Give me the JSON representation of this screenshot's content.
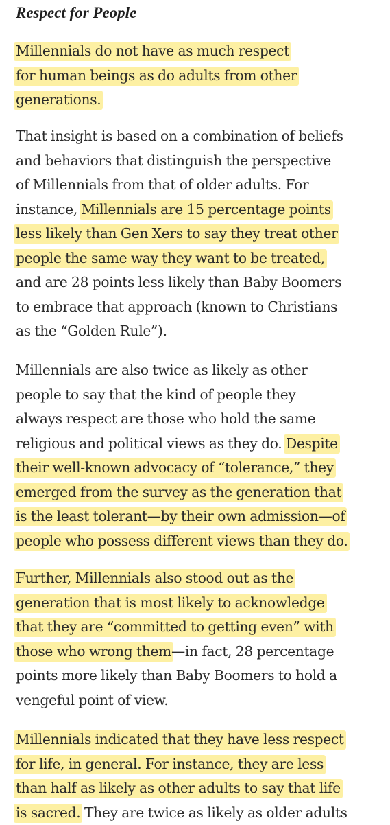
{
  "heading": "Respect for People",
  "colors": {
    "highlight": "#fdf0a3",
    "text": "#2b2b2b"
  },
  "paragraphs": [
    {
      "lines": [
        [
          {
            "text": "Millennials do not have as much respect",
            "hl": true
          }
        ],
        [
          {
            "text": "for human beings as do adults from other",
            "hl": true
          }
        ],
        [
          {
            "text": "generations.",
            "hl": true
          }
        ]
      ]
    },
    {
      "lines": [
        [
          {
            "text": "That insight is based on a combination of beliefs",
            "hl": false
          }
        ],
        [
          {
            "text": "and behaviors that distinguish the perspective",
            "hl": false
          }
        ],
        [
          {
            "text": "of Millennials from that of older adults. For",
            "hl": false
          }
        ],
        [
          {
            "text": "instance, ",
            "hl": false
          },
          {
            "text": "Millennials are 15 percentage points",
            "hl": true
          }
        ],
        [
          {
            "text": "less likely than Gen Xers to say they treat other",
            "hl": true
          }
        ],
        [
          {
            "text": "people the same way they want to be treated,",
            "hl": true
          }
        ],
        [
          {
            "text": "and are 28 points less likely than Baby Boomers",
            "hl": false
          }
        ],
        [
          {
            "text": "to embrace that approach (known to Christians",
            "hl": false
          }
        ],
        [
          {
            "text": "as the “Golden Rule”).",
            "hl": false
          }
        ]
      ]
    },
    {
      "lines": [
        [
          {
            "text": "Millennials are also twice as likely as other",
            "hl": false
          }
        ],
        [
          {
            "text": "people to say that the kind of people they",
            "hl": false
          }
        ],
        [
          {
            "text": "always respect are those who hold the same",
            "hl": false
          }
        ],
        [
          {
            "text": "religious and political views as they do. ",
            "hl": false
          },
          {
            "text": "Despite",
            "hl": true
          }
        ],
        [
          {
            "text": "their well-known advocacy of “tolerance,” they",
            "hl": true
          }
        ],
        [
          {
            "text": "emerged from the survey as the generation that",
            "hl": true
          }
        ],
        [
          {
            "text": "is the least tolerant—by their own admission—of",
            "hl": true
          }
        ],
        [
          {
            "text": "people who possess different views than they do.",
            "hl": true
          }
        ]
      ]
    },
    {
      "lines": [
        [
          {
            "text": "Further, Millennials also stood out as the",
            "hl": true
          }
        ],
        [
          {
            "text": "generation that is most likely to acknowledge",
            "hl": true
          }
        ],
        [
          {
            "text": "that they are “committed to getting even” with",
            "hl": true
          }
        ],
        [
          {
            "text": "those who wrong them",
            "hl": true
          },
          {
            "text": "—in fact, 28 percentage",
            "hl": false
          }
        ],
        [
          {
            "text": "points more likely than Baby Boomers to hold a",
            "hl": false
          }
        ],
        [
          {
            "text": "vengeful point of view.",
            "hl": false
          }
        ]
      ]
    },
    {
      "lines": [
        [
          {
            "text": "Millennials indicated that they have less respect",
            "hl": true
          }
        ],
        [
          {
            "text": "for life, in general. For instance, they are less",
            "hl": true
          }
        ],
        [
          {
            "text": "than half as likely as other adults to say that life",
            "hl": true
          }
        ],
        [
          {
            "text": "is sacred.",
            "hl": true
          },
          {
            "text": " They are twice as likely as older adults",
            "hl": false
          }
        ]
      ]
    }
  ]
}
